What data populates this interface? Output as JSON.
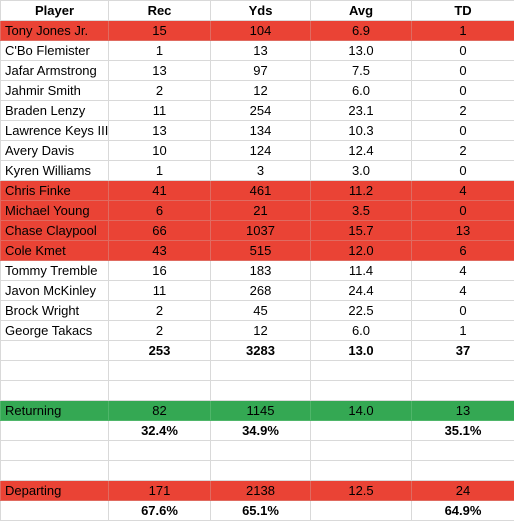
{
  "colors": {
    "highlight_red": "#ea4335",
    "highlight_green": "#34a853",
    "grid": "#d9d9d9"
  },
  "header": [
    "Player",
    "Rec",
    "Yds",
    "Avg",
    "TD"
  ],
  "players": [
    {
      "name": "Tony Jones Jr.",
      "rec": "15",
      "yds": "104",
      "avg": "6.9",
      "td": "1",
      "highlight": "red"
    },
    {
      "name": "C'Bo Flemister",
      "rec": "1",
      "yds": "13",
      "avg": "13.0",
      "td": "0",
      "highlight": "none"
    },
    {
      "name": "Jafar Armstrong",
      "rec": "13",
      "yds": "97",
      "avg": "7.5",
      "td": "0",
      "highlight": "none"
    },
    {
      "name": "Jahmir Smith",
      "rec": "2",
      "yds": "12",
      "avg": "6.0",
      "td": "0",
      "highlight": "none"
    },
    {
      "name": "Braden Lenzy",
      "rec": "11",
      "yds": "254",
      "avg": "23.1",
      "td": "2",
      "highlight": "none"
    },
    {
      "name": "Lawrence Keys III",
      "rec": "13",
      "yds": "134",
      "avg": "10.3",
      "td": "0",
      "highlight": "none"
    },
    {
      "name": "Avery Davis",
      "rec": "10",
      "yds": "124",
      "avg": "12.4",
      "td": "2",
      "highlight": "none"
    },
    {
      "name": "Kyren Williams",
      "rec": "1",
      "yds": "3",
      "avg": "3.0",
      "td": "0",
      "highlight": "none"
    },
    {
      "name": "Chris Finke",
      "rec": "41",
      "yds": "461",
      "avg": "11.2",
      "td": "4",
      "highlight": "red"
    },
    {
      "name": "Michael Young",
      "rec": "6",
      "yds": "21",
      "avg": "3.5",
      "td": "0",
      "highlight": "red"
    },
    {
      "name": "Chase Claypool",
      "rec": "66",
      "yds": "1037",
      "avg": "15.7",
      "td": "13",
      "highlight": "red"
    },
    {
      "name": "Cole Kmet",
      "rec": "43",
      "yds": "515",
      "avg": "12.0",
      "td": "6",
      "highlight": "red"
    },
    {
      "name": "Tommy Tremble",
      "rec": "16",
      "yds": "183",
      "avg": "11.4",
      "td": "4",
      "highlight": "none"
    },
    {
      "name": "Javon McKinley",
      "rec": "11",
      "yds": "268",
      "avg": "24.4",
      "td": "4",
      "highlight": "none"
    },
    {
      "name": "Brock Wright",
      "rec": "2",
      "yds": "45",
      "avg": "22.5",
      "td": "0",
      "highlight": "none"
    },
    {
      "name": "George Takacs",
      "rec": "2",
      "yds": "12",
      "avg": "6.0",
      "td": "1",
      "highlight": "none"
    }
  ],
  "totals": {
    "rec": "253",
    "yds": "3283",
    "avg": "13.0",
    "td": "37"
  },
  "returning": {
    "label": "Returning",
    "rec": "82",
    "yds": "1145",
    "avg": "14.0",
    "td": "13",
    "pct": {
      "rec": "32.4%",
      "yds": "34.9%",
      "avg": "",
      "td": "35.1%"
    }
  },
  "departing": {
    "label": "Departing",
    "rec": "171",
    "yds": "2138",
    "avg": "12.5",
    "td": "24",
    "pct": {
      "rec": "67.6%",
      "yds": "65.1%",
      "avg": "",
      "td": "64.9%"
    }
  }
}
